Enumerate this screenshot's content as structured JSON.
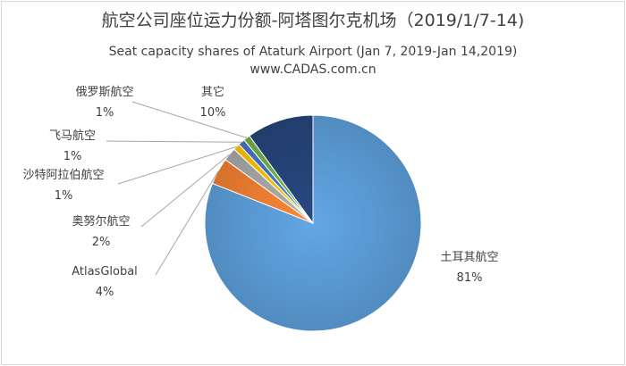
{
  "chart_data": {
    "type": "pie",
    "title": "航空公司座位运力份额-阿塔图尔克机场（2019/1/7-14)",
    "subtitle": "Seat capacity shares of Ataturk Airport (Jan 7, 2019-Jan 14,2019)",
    "source": "www.CADAS.com.cn",
    "slices": [
      {
        "name": "土耳其航空",
        "pct_label": "81%",
        "value": 81,
        "color": "#5b9bd5"
      },
      {
        "name": "AtlasGlobal",
        "pct_label": "4%",
        "value": 4,
        "color": "#ed7d31"
      },
      {
        "name": "奥努尔航空",
        "pct_label": "2%",
        "value": 2,
        "color": "#a5a5a5"
      },
      {
        "name": "沙特阿拉伯航空",
        "pct_label": "1%",
        "value": 1,
        "color": "#ffc000"
      },
      {
        "name": "飞马航空",
        "pct_label": "1%",
        "value": 1,
        "color": "#4472c4"
      },
      {
        "name": "俄罗斯航空",
        "pct_label": "1%",
        "value": 1,
        "color": "#70ad47"
      },
      {
        "name": "其它",
        "pct_label": "10%",
        "value": 10,
        "color": "#264478"
      }
    ]
  }
}
